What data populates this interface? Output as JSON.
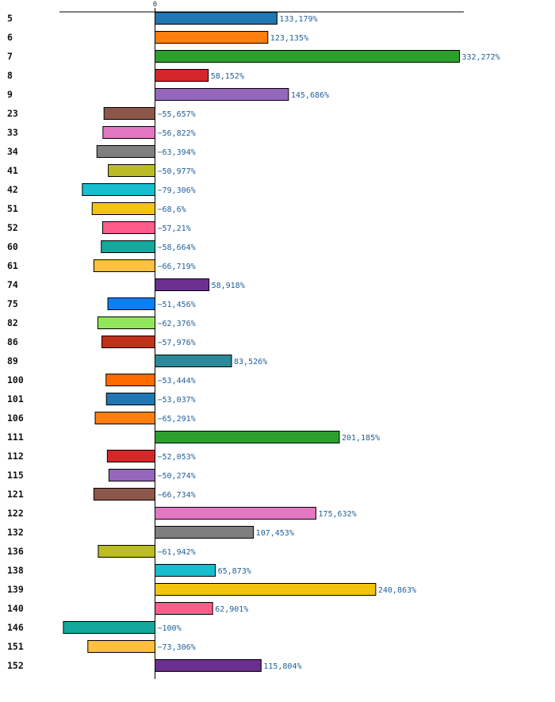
{
  "chart_data": {
    "type": "bar",
    "orientation": "horizontal",
    "title": "",
    "xlabel": "",
    "ylabel": "",
    "xlim": [
      -100,
      332.272
    ],
    "zero_tick_label": "0",
    "value_suffix": "%",
    "decimal_separator": ",",
    "categories": [
      "5",
      "6",
      "7",
      "8",
      "9",
      "23",
      "33",
      "34",
      "41",
      "42",
      "51",
      "52",
      "60",
      "61",
      "74",
      "75",
      "82",
      "86",
      "89",
      "100",
      "101",
      "106",
      "111",
      "112",
      "115",
      "121",
      "122",
      "132",
      "136",
      "138",
      "139",
      "140",
      "146",
      "151",
      "152"
    ],
    "values": [
      133.179,
      123.135,
      332.272,
      58.152,
      145.686,
      -55.657,
      -56.822,
      -63.394,
      -50.977,
      -79.306,
      -68.6,
      -57.21,
      -58.664,
      -66.719,
      58.918,
      -51.456,
      -62.376,
      -57.976,
      83.526,
      -53.444,
      -53.037,
      -65.291,
      201.185,
      -52.053,
      -50.274,
      -66.734,
      175.632,
      107.453,
      -61.942,
      65.873,
      240.863,
      62.901,
      -100,
      -73.306,
      115.804
    ],
    "value_labels": [
      "133,179%",
      "123,135%",
      "332,272%",
      "58,152%",
      "145,686%",
      "−55,657%",
      "−56,822%",
      "−63,394%",
      "−50,977%",
      "−79,306%",
      "−68,6%",
      "−57,21%",
      "−58,664%",
      "−66,719%",
      "58,918%",
      "−51,456%",
      "−62,376%",
      "−57,976%",
      "83,526%",
      "−53,444%",
      "−53,037%",
      "−65,291%",
      "201,185%",
      "−52,053%",
      "−50,274%",
      "−66,734%",
      "175,632%",
      "107,453%",
      "−61,942%",
      "65,873%",
      "240,863%",
      "62,901%",
      "−100%",
      "−73,306%",
      "115,804%"
    ],
    "colors": [
      "#1f77b4",
      "#ff7f0e",
      "#2ca02c",
      "#d62728",
      "#9467bd",
      "#8c564b",
      "#e377c2",
      "#7f7f7f",
      "#bcbd22",
      "#17becf",
      "#f1c40f",
      "#ff5c8a",
      "#12a89d",
      "#ffbf3f",
      "#6b2f8f",
      "#0a7ff5",
      "#8fe65a",
      "#c0311a",
      "#2a8a9a",
      "#ff6a00",
      "#1f77b4",
      "#ff7f0e",
      "#2ca02c",
      "#d62728",
      "#9467bd",
      "#8c564b",
      "#e377c2",
      "#7f7f7f",
      "#bcbd22",
      "#17becf",
      "#f1c40f",
      "#ff5c8a",
      "#12a89d",
      "#ffbf3f",
      "#6b2f8f"
    ]
  }
}
